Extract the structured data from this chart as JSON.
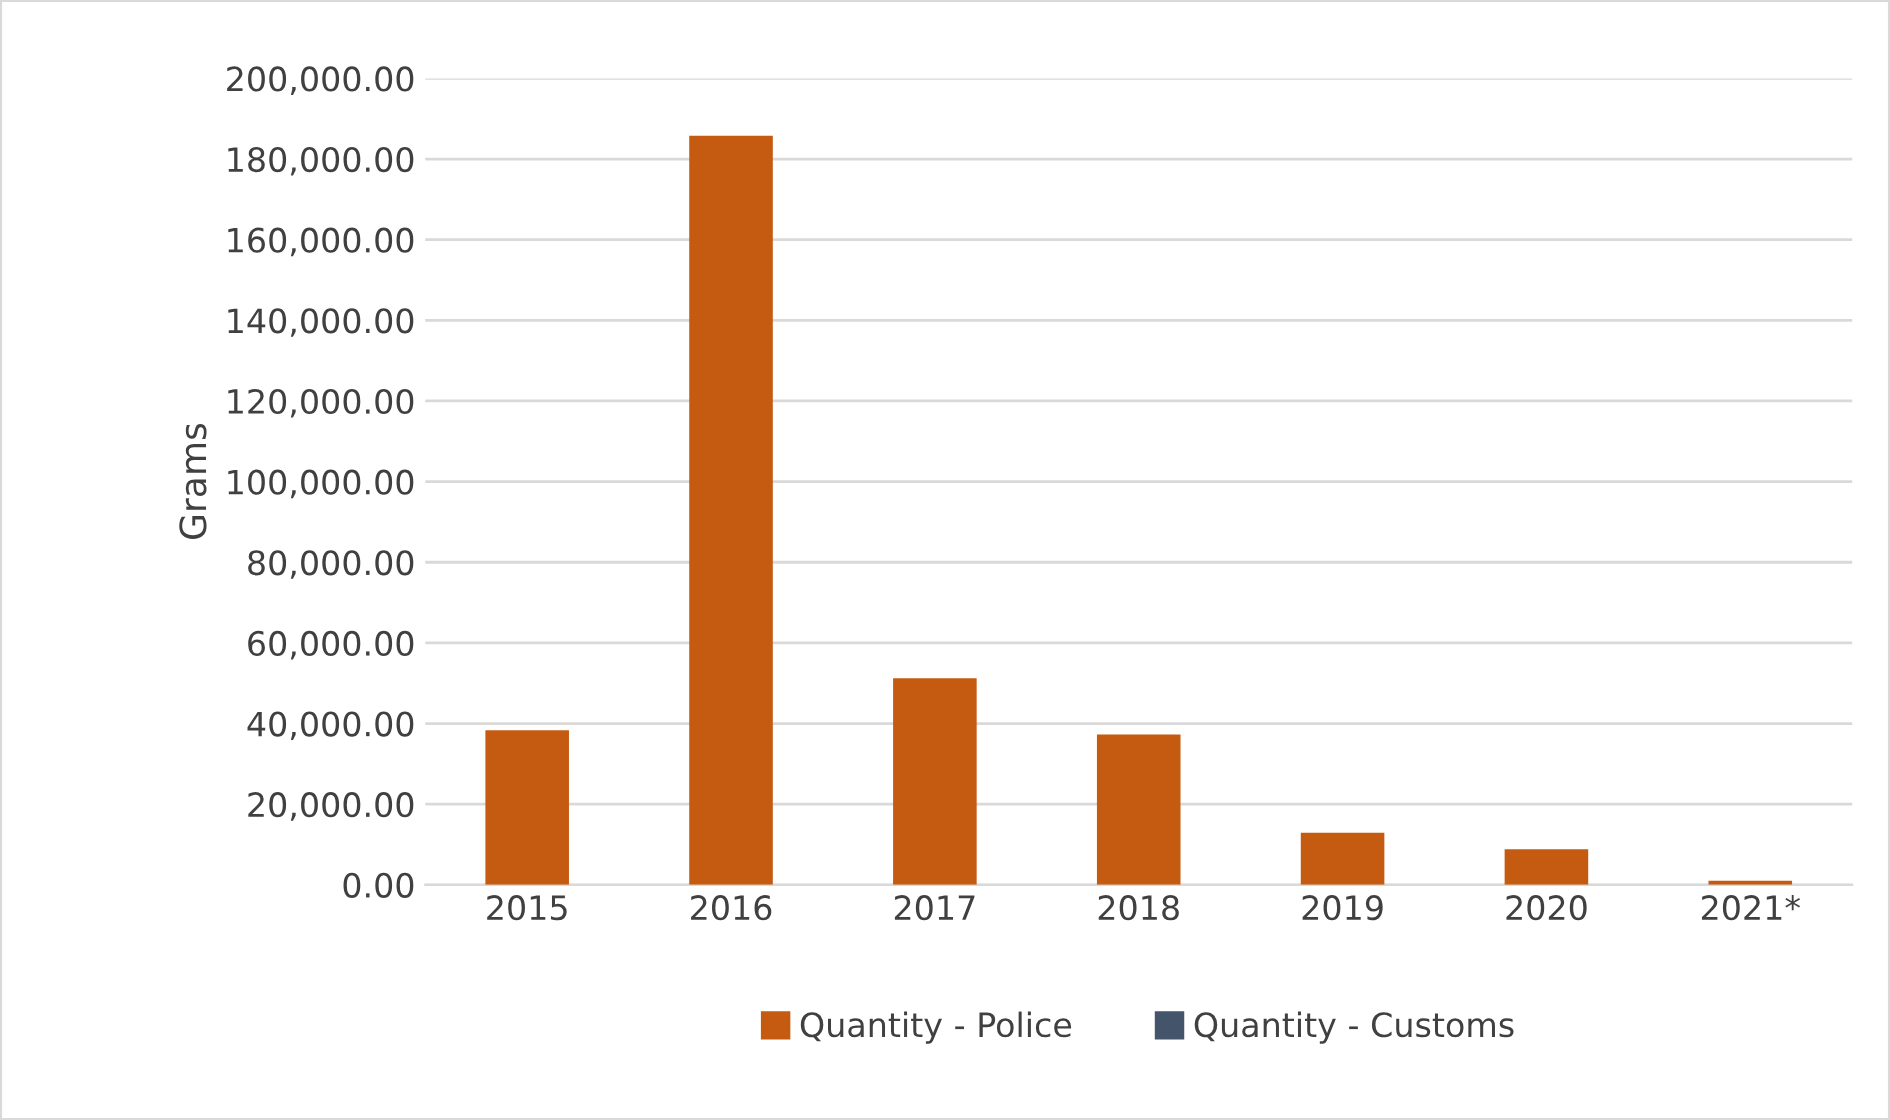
{
  "chart_data": {
    "type": "bar",
    "ylabel": "Grams",
    "categories": [
      "2015",
      "2016",
      "2017",
      "2018",
      "2019",
      "2020",
      "2021*"
    ],
    "series": [
      {
        "name": "Quantity - Police",
        "color": "#c55a11",
        "values": [
          38300,
          185800,
          51200,
          37300,
          12900,
          8800,
          1000
        ]
      },
      {
        "name": "Quantity - Customs",
        "color": "#44546a",
        "values": [
          null,
          null,
          null,
          null,
          null,
          null,
          null
        ]
      }
    ],
    "ylim": [
      0,
      200000
    ],
    "yticks": [
      {
        "value": 0,
        "label": "0.00"
      },
      {
        "value": 20000,
        "label": "20,000.00"
      },
      {
        "value": 40000,
        "label": "40,000.00"
      },
      {
        "value": 60000,
        "label": "60,000.00"
      },
      {
        "value": 80000,
        "label": "80,000.00"
      },
      {
        "value": 100000,
        "label": "100,000.00"
      },
      {
        "value": 120000,
        "label": "120,000.00"
      },
      {
        "value": 140000,
        "label": "140,000.00"
      },
      {
        "value": 160000,
        "label": "160,000.00"
      },
      {
        "value": 180000,
        "label": "180,000.00"
      },
      {
        "value": 200000,
        "label": "200,000.00"
      }
    ],
    "grid": "y",
    "legend": "bottom"
  }
}
